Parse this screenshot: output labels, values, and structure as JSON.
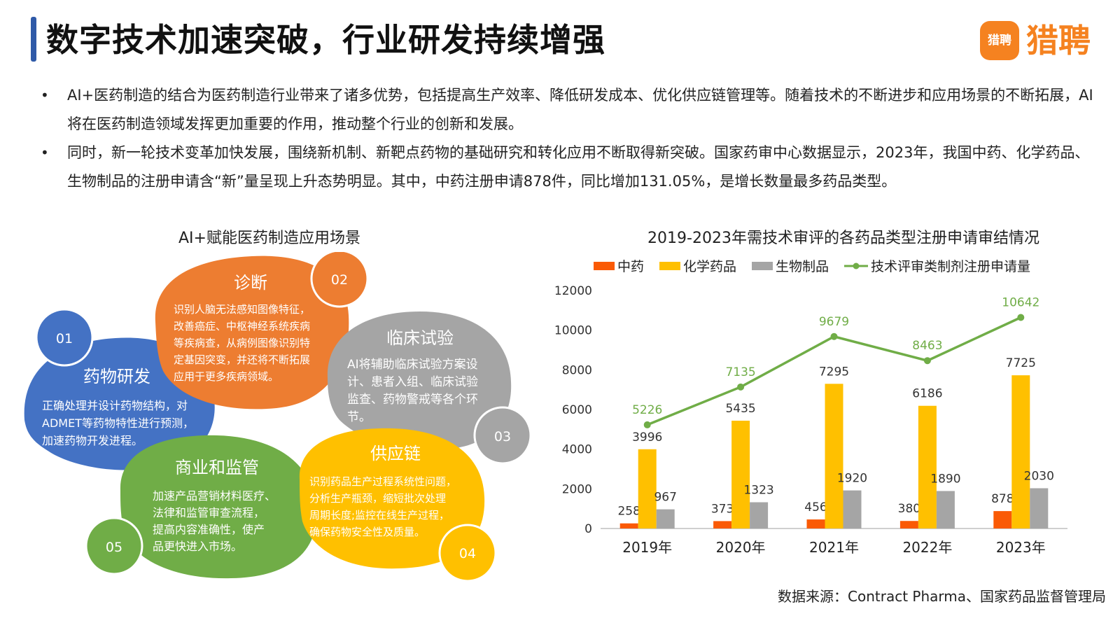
{
  "header": {
    "title": "数字技术加速突破，行业研发持续增强",
    "logo_mark": "猎聘",
    "logo_text": "猎聘"
  },
  "bullets": [
    "AI+医药制造的结合为医药制造行业带来了诸多优势，包括提高生产效率、降低研发成本、优化供应链管理等。随着技术的不断进步和应用场景的不断拓展，AI将在医药制造领域发挥更加重要的作用，推动整个行业的创新和发展。",
    "同时，新一轮技术变革加快发展，围绕新机制、新靶点药物的基础研究和转化应用不断取得新突破。国家药审中心数据显示，2023年，我国中药、化学药品、生物制品的注册申请含“新”量呈现上升态势明显。其中，中药注册申请878件，同比增加131.05%，是增长数量最多药品类型。"
  ],
  "diagram": {
    "title": "AI+赋能医药制造应用场景",
    "blobs": [
      {
        "number": "01",
        "title": "药物研发",
        "color": "#4472c4",
        "lines": [
          "正确处理并设计药物结构，对",
          "ADMET等药物特性进行预测，",
          "加速药物开发进程。"
        ]
      },
      {
        "number": "02",
        "title": "诊断",
        "color": "#ed7d31",
        "lines": [
          "识别人脑无法感知图像特征，",
          "改善癌症、中枢神经系统疾病",
          "等疾病查，从病例图像识别特",
          "定基因突变，并还将不断拓展",
          "应用于更多疾病领域。"
        ]
      },
      {
        "number": "03",
        "title": "临床试验",
        "color": "#a5a5a5",
        "lines": [
          "AI将辅助临床试验方案设",
          "计、患者入组、临床试验",
          "监查、药物警戒等各个环",
          "节。"
        ]
      },
      {
        "number": "04",
        "title": "供应链",
        "color": "#ffc000",
        "lines": [
          "识别药品生产过程系统性问题，",
          "分析生产瓶颈，缩短批次处理",
          "周期长度;监控在线生产过程，",
          "确保药物安全性及质量。"
        ]
      },
      {
        "number": "05",
        "title": "商业和监管",
        "color": "#70ad47",
        "lines": [
          "加速产品营销材料医疗、",
          "法律和监管审查流程，",
          "提高内容准确性，使产",
          "品更快进入市场。"
        ]
      }
    ]
  },
  "chart_data": {
    "type": "bar",
    "title": "2019-2023年需技术审评的各药品类型注册申请审结情况",
    "categories": [
      "2019年",
      "2020年",
      "2021年",
      "2022年",
      "2023年"
    ],
    "series": [
      {
        "name": "中药",
        "type": "bar",
        "color": "#fa5a05",
        "values": [
          258,
          373,
          456,
          380,
          878
        ]
      },
      {
        "name": "化学药品",
        "type": "bar",
        "color": "#ffc000",
        "values": [
          3996,
          5435,
          7295,
          6186,
          7725
        ]
      },
      {
        "name": "生物制品",
        "type": "bar",
        "color": "#a5a5a5",
        "values": [
          967,
          1323,
          1920,
          1890,
          2030
        ]
      },
      {
        "name": "技术评审类制剂注册申请量",
        "type": "line",
        "color": "#70ad47",
        "values": [
          5226,
          7135,
          9679,
          8463,
          10642
        ]
      }
    ],
    "ylim": [
      0,
      12000
    ],
    "yticks": [
      0,
      2000,
      4000,
      6000,
      8000,
      10000,
      12000
    ],
    "legend": "top",
    "grid": false
  },
  "source": "数据来源：Contract Pharma、国家药品监督管理局"
}
